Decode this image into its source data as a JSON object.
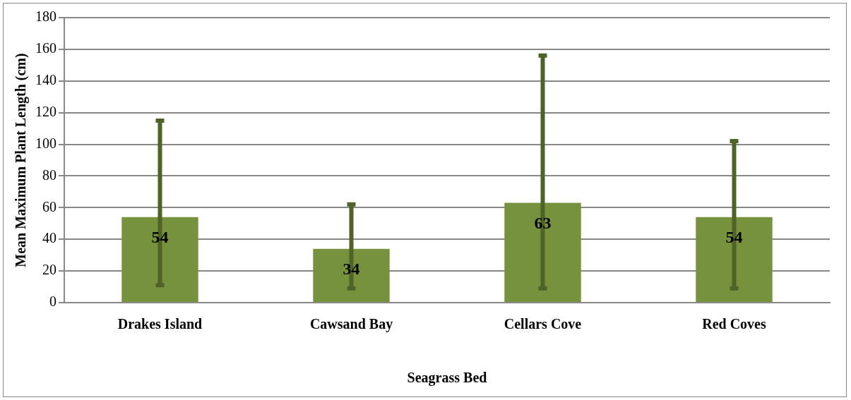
{
  "chart_data": {
    "type": "bar",
    "xlabel": "Seagrass Bed",
    "ylabel": "Mean Maximum Plant Length (cm)",
    "categories": [
      "Drakes Island",
      "Cawsand Bay",
      "Cellars Cove",
      "Red Coves"
    ],
    "series": [
      {
        "color": "#76923c",
        "values": [
          54,
          34,
          63,
          54
        ],
        "errors": [
          [
            11,
            115
          ],
          [
            9,
            62
          ],
          [
            9,
            156
          ],
          [
            9,
            102
          ]
        ]
      }
    ],
    "ylim": [
      0,
      180
    ],
    "yticks": [
      0,
      20,
      40,
      60,
      80,
      100,
      120,
      140,
      160,
      180
    ],
    "grid": "y",
    "legend": false,
    "data_labels": true
  }
}
